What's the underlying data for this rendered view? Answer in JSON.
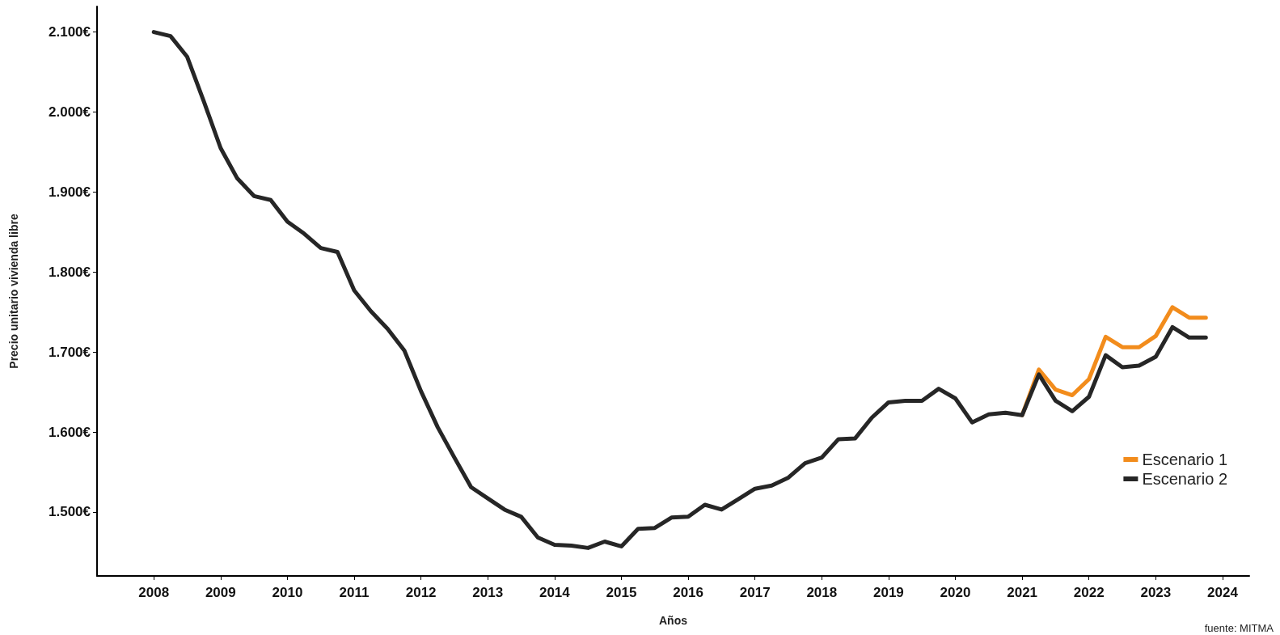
{
  "chart_data": {
    "type": "line",
    "xlabel": "Años",
    "ylabel": "Precio unitario vivienda libre",
    "xlim": [
      2007.15,
      2024.4
    ],
    "xticks": [
      2008,
      2009,
      2010,
      2011,
      2012,
      2013,
      2014,
      2015,
      2016,
      2017,
      2018,
      2019,
      2020,
      2021,
      2022,
      2023,
      2024
    ],
    "ylim": [
      1420,
      2132
    ],
    "yticks": [
      {
        "value": 1500,
        "label": "1.500€"
      },
      {
        "value": 1600,
        "label": "1.600€"
      },
      {
        "value": 1700,
        "label": "1.700€"
      },
      {
        "value": 1800,
        "label": "1.800€"
      },
      {
        "value": 1900,
        "label": "1.900€"
      },
      {
        "value": 2000,
        "label": "2.000€"
      },
      {
        "value": 2100,
        "label": "2.100€"
      }
    ],
    "grid": false,
    "legend": "right",
    "marker": "none",
    "line_style": "solid",
    "annotations": [
      "fuente: MITMA"
    ],
    "series": [
      {
        "name": "Escenario 1",
        "color": "#f28c1c",
        "x": [
          2021,
          2021.25,
          2021.5,
          2021.75,
          2022,
          2022.25,
          2022.5,
          2022.75,
          2023,
          2023.25,
          2023.5,
          2023.75
        ],
        "values": [
          1621,
          1678,
          1653,
          1646,
          1666,
          1719,
          1706,
          1706,
          1720,
          1756,
          1743,
          1743
        ]
      },
      {
        "name": "Escenario 2",
        "color": "#262626",
        "x": [
          2008,
          2008.25,
          2008.5,
          2008.75,
          2009,
          2009.25,
          2009.5,
          2009.75,
          2010,
          2010.25,
          2010.5,
          2010.75,
          2011,
          2011.25,
          2011.5,
          2011.75,
          2012,
          2012.25,
          2012.5,
          2012.75,
          2013,
          2013.25,
          2013.5,
          2013.75,
          2014,
          2014.25,
          2014.5,
          2014.75,
          2015,
          2015.25,
          2015.5,
          2015.75,
          2016,
          2016.25,
          2016.5,
          2016.75,
          2017,
          2017.25,
          2017.5,
          2017.75,
          2018,
          2018.25,
          2018.5,
          2018.75,
          2019,
          2019.25,
          2019.5,
          2019.75,
          2020,
          2020.25,
          2020.5,
          2020.75,
          2021,
          2021.25,
          2021.5,
          2021.75,
          2022,
          2022.25,
          2022.5,
          2022.75,
          2023,
          2023.25,
          2023.5,
          2023.75
        ],
        "values": [
          2100,
          2095,
          2069,
          2013,
          1955,
          1917,
          1895,
          1890,
          1863,
          1848,
          1830,
          1825,
          1777,
          1751,
          1729,
          1702,
          1651,
          1606,
          1568,
          1531,
          1517,
          1503,
          1494,
          1468,
          1459,
          1458,
          1455,
          1463,
          1457,
          1479,
          1480,
          1493,
          1494,
          1509,
          1503,
          1516,
          1529,
          1533,
          1543,
          1561,
          1568,
          1591,
          1592,
          1618,
          1637,
          1639,
          1639,
          1654,
          1642,
          1612,
          1622,
          1624,
          1621,
          1672,
          1639,
          1626,
          1644,
          1696,
          1681,
          1683,
          1694,
          1731,
          1718,
          1718
        ]
      }
    ]
  }
}
